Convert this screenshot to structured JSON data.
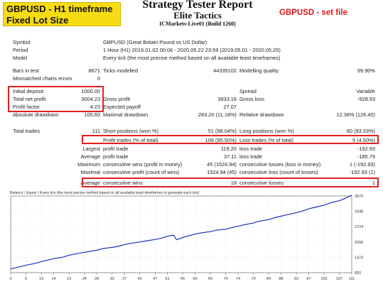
{
  "header": {
    "badge_line1": "GBPUSD - H1 timeframe",
    "badge_line2": "Fixed Lot Size",
    "title": "Strategy Tester Report",
    "subtitle": "Elite Tactics",
    "server": "ICMarkets-Live01 (Build 1260)",
    "setfile": "GBPUSD - set file"
  },
  "info": {
    "symbol_label": "Symbol",
    "symbol_value": "GBPUSD (Great Britain Pound vs US Dollar)",
    "period_label": "Period",
    "period_value": "1 Hour (H1) 2019.01.02 00:06 - 2020.05.22 23:59 (2019.05.01 - 2020.05.25)",
    "model_label": "Model",
    "model_value": "Every tick (the most precise method based on all available least timeframes)"
  },
  "stats": {
    "bars_label": "Bars in test",
    "bars_value": "8671",
    "ticks_label": "Ticks modelled",
    "ticks_value": "44335102",
    "quality_label": "Modelling quality",
    "quality_value": "99.90%",
    "mismatch_label": "Mismatched charts errors",
    "mismatch_value": "0",
    "deposit_label": "Initial deposit",
    "deposit_value": "1000.00",
    "spread_label": "Spread",
    "spread_value": "Variable",
    "netprofit_label": "Total net profit",
    "netprofit_value": "3004.23",
    "grossprofit_label": "Gross profit",
    "grossprofit_value": "3933.16",
    "grossloss_label": "Gross loss",
    "grossloss_value": "-928.93",
    "pf_label": "Profit factor",
    "pf_value": "4.23",
    "payoff_label": "Expected payoff",
    "payoff_value": "27.07",
    "absdd_label": "Absolute drawdown",
    "absdd_value": "105.60",
    "maxdd_label": "Maximal drawdown",
    "maxdd_value": "283.20 (11.18%)",
    "reldd_label": "Relative drawdown",
    "reldd_value": "12.38% (126.40)",
    "trades_label": "Total trades",
    "trades_value": "111",
    "short_label": "Short positions (won %)",
    "short_value": "51 (98.04%)",
    "long_label": "Long positions (won %)",
    "long_value": "60 (93.33%)",
    "ptrades_label": "Profit trades (% of total)",
    "ptrades_value": "106 (95.50%)",
    "ltrades_label": "Loss trades (% of total)",
    "ltrades_value": "5 (4.50%)",
    "largest_label": "Largest",
    "lp_label": "profit trade",
    "lp_value": "119.20",
    "ll_label": "loss trade",
    "ll_value": "-192.93",
    "average_label": "Average",
    "ap_label": "profit trade",
    "ap_value": "37.11",
    "al_label": "loss trade",
    "al_value": "-185.79",
    "maximum_label": "Maximum",
    "mcw_label": "consecutive wins (profit in money)",
    "mcw_value": "45 (1524.94)",
    "mcl_label": "consecutive losses (loss in money)",
    "mcl_value": "1 (-192.93)",
    "maximal_label": "Maximal",
    "mcp_label": "consecutive profit (count of wins)",
    "mcp_value": "1524.94 (45)",
    "mclc_label": "consecutive loss (count of losses)",
    "mclc_value": "-192.93 (1)",
    "average2_label": "Average",
    "acw_label": "consecutive wins",
    "acw_value": "18",
    "acl_label": "consecutive losses",
    "acl_value": "1"
  },
  "chart_data": {
    "type": "line",
    "legend": "Balance / Equity / Every tick (the most precise method based on all available least timeframes to generate each tick)",
    "x_ticks": [
      0,
      5,
      10,
      14,
      19,
      24,
      28,
      33,
      37,
      42,
      47,
      51,
      56,
      60,
      65,
      70,
      74,
      79,
      84,
      88,
      93,
      97,
      102,
      107,
      111
    ],
    "y_ticks": [
      850,
      1474,
      2099,
      2724,
      3348,
      3973
    ],
    "xlim": [
      0,
      111
    ],
    "ylim": [
      850,
      3973
    ],
    "series": [
      {
        "name": "Balance",
        "color": "#1a2fbf",
        "x": [
          0,
          3,
          5,
          8,
          10,
          12,
          14,
          17,
          19,
          21,
          24,
          26,
          28,
          30,
          33,
          35,
          37,
          39,
          42,
          44,
          47,
          49,
          51,
          53,
          54,
          56,
          58,
          60,
          62,
          65,
          67,
          70,
          72,
          74,
          76,
          79,
          81,
          84,
          86,
          88,
          90,
          93,
          95,
          97,
          99,
          102,
          104,
          107,
          109,
          111
        ],
        "y": [
          1000,
          1090,
          1150,
          1230,
          1300,
          1360,
          1420,
          1480,
          1560,
          1610,
          1680,
          1720,
          1760,
          1830,
          1880,
          1920,
          1990,
          2040,
          2100,
          2140,
          2200,
          2250,
          2330,
          2380,
          2190,
          2280,
          2350,
          2420,
          2470,
          2520,
          2580,
          2620,
          2690,
          2740,
          2800,
          2870,
          2950,
          3010,
          3090,
          3150,
          3210,
          3290,
          3360,
          3450,
          3510,
          3600,
          3690,
          3780,
          3890,
          4004
        ]
      }
    ]
  }
}
